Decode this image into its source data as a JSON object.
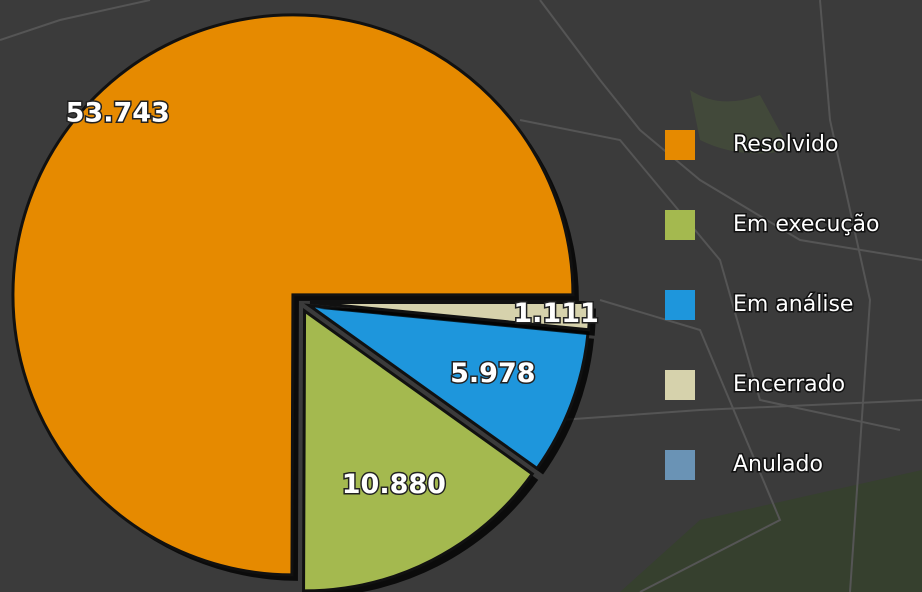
{
  "chart_data": {
    "type": "pie",
    "categories": [
      "Resolvido",
      "Em execução",
      "Em análise",
      "Encerrado",
      "Anulado"
    ],
    "values": [
      53743,
      10880,
      5978,
      1111,
      0
    ],
    "value_labels": [
      "53.743",
      "10.880",
      "5.978",
      "1.111",
      null
    ],
    "colors": [
      "#e68a00",
      "#a4b94f",
      "#1e96dc",
      "#d6d2ac",
      "#6a93b5"
    ],
    "legend": "right"
  }
}
